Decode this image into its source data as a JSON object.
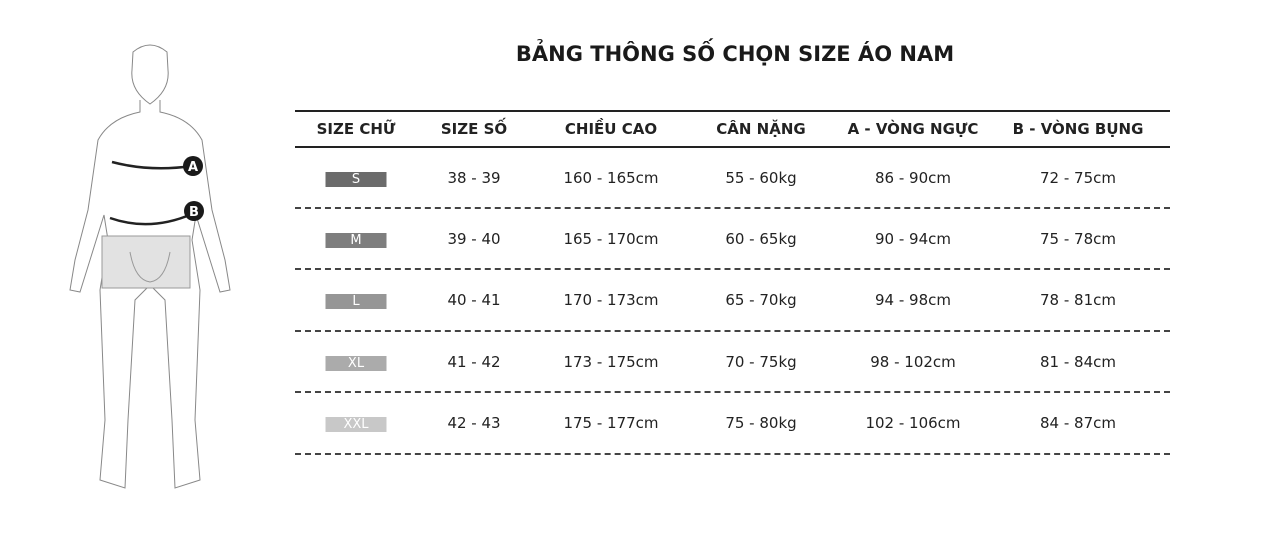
{
  "title": "BẢNG THÔNG SỐ CHỌN SIZE ÁO NAM",
  "figure": {
    "marker_a": "A",
    "marker_b": "B"
  },
  "headers": [
    "SIZE CHỮ",
    "SIZE SỐ",
    "CHIỀU CAO",
    "CÂN NẶNG",
    "A - VÒNG NGỰC",
    "B - VÒNG BỤNG"
  ],
  "rows": [
    {
      "size": "S",
      "number": "38 - 39",
      "height": "160 - 165cm",
      "weight": "55 - 60kg",
      "chest": "86 - 90cm",
      "waist": "72 - 75cm",
      "badge_color": "#6b6b6b"
    },
    {
      "size": "M",
      "number": "39 - 40",
      "height": "165 - 170cm",
      "weight": "60 - 65kg",
      "chest": "90 - 94cm",
      "waist": "75 - 78cm",
      "badge_color": "#7e7e7e"
    },
    {
      "size": "L",
      "number": "40 - 41",
      "height": "170 - 173cm",
      "weight": "65 - 70kg",
      "chest": "94 - 98cm",
      "waist": "78 - 81cm",
      "badge_color": "#969696"
    },
    {
      "size": "XL",
      "number": "41 - 42",
      "height": "173 - 175cm",
      "weight": "70 - 75kg",
      "chest": "98 - 102cm",
      "waist": "81 - 84cm",
      "badge_color": "#ababab"
    },
    {
      "size": "XXL",
      "number": "42 - 43",
      "height": "175 - 177cm",
      "weight": "75 - 80kg",
      "chest": "102 - 106cm",
      "waist": "84 - 87cm",
      "badge_color": "#c8c8c8"
    }
  ]
}
